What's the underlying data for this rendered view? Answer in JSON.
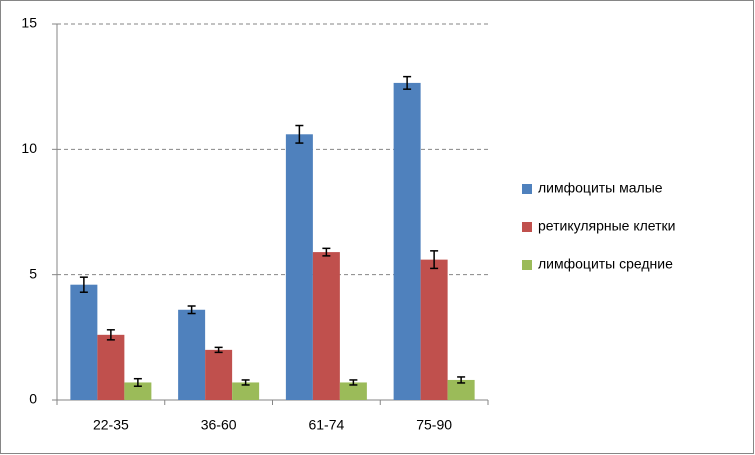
{
  "chart_data": {
    "type": "bar",
    "categories": [
      "22-35",
      "36-60",
      "61-74",
      "75-90"
    ],
    "series": [
      {
        "name": "лимфоциты малые",
        "color": "#4f81bd",
        "values": [
          4.6,
          3.6,
          10.6,
          12.65
        ],
        "errors": [
          0.3,
          0.15,
          0.35,
          0.25
        ]
      },
      {
        "name": "ретикулярные клетки",
        "color": "#c0504d",
        "values": [
          2.6,
          2.0,
          5.9,
          5.6
        ],
        "errors": [
          0.2,
          0.1,
          0.15,
          0.35
        ]
      },
      {
        "name": "лимфоциты средние",
        "color": "#9bbb59",
        "values": [
          0.7,
          0.7,
          0.7,
          0.8
        ],
        "errors": [
          0.15,
          0.1,
          0.1,
          0.12
        ]
      }
    ],
    "ylim": [
      0,
      15
    ],
    "yticks": [
      0,
      5,
      10,
      15
    ],
    "grid": true,
    "legend": "right"
  }
}
